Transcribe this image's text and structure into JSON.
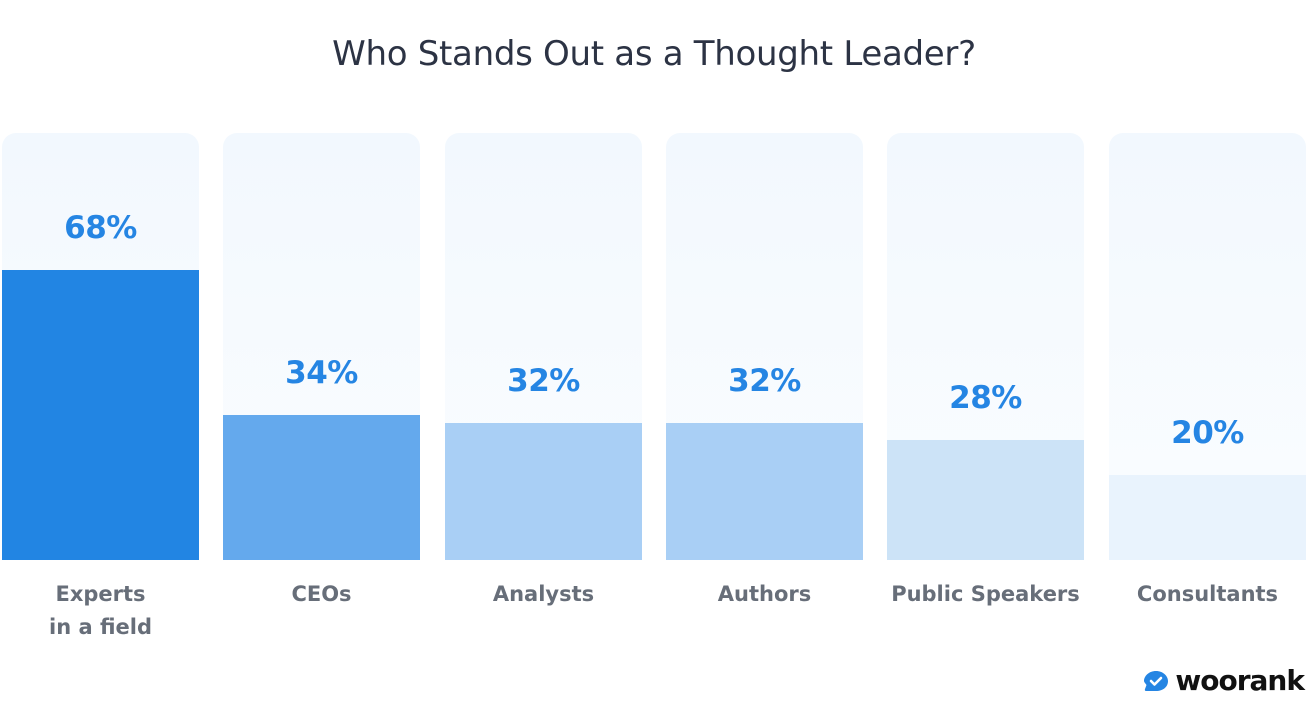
{
  "chart_data": {
    "type": "bar",
    "title": "Who Stands Out as a Thought Leader?",
    "categories": [
      "Experts\nin a field",
      "CEOs",
      "Analysts",
      "Authors",
      "Public Speakers",
      "Consultants"
    ],
    "values": [
      68,
      34,
      32,
      32,
      28,
      20
    ],
    "value_labels": [
      "68%",
      "34%",
      "32%",
      "32%",
      "28%",
      "20%"
    ],
    "bar_colors": [
      "#2285e3",
      "#64a9ed",
      "#a9cff5",
      "#a9cff5",
      "#cce3f7",
      "#e9f3fd"
    ],
    "xlabel": "",
    "ylabel": "",
    "ylim": [
      0,
      100
    ],
    "grid": false,
    "legend": "none"
  },
  "brand": {
    "name": "woorank",
    "icon": "check-badge-icon",
    "icon_color": "#2585e3"
  }
}
